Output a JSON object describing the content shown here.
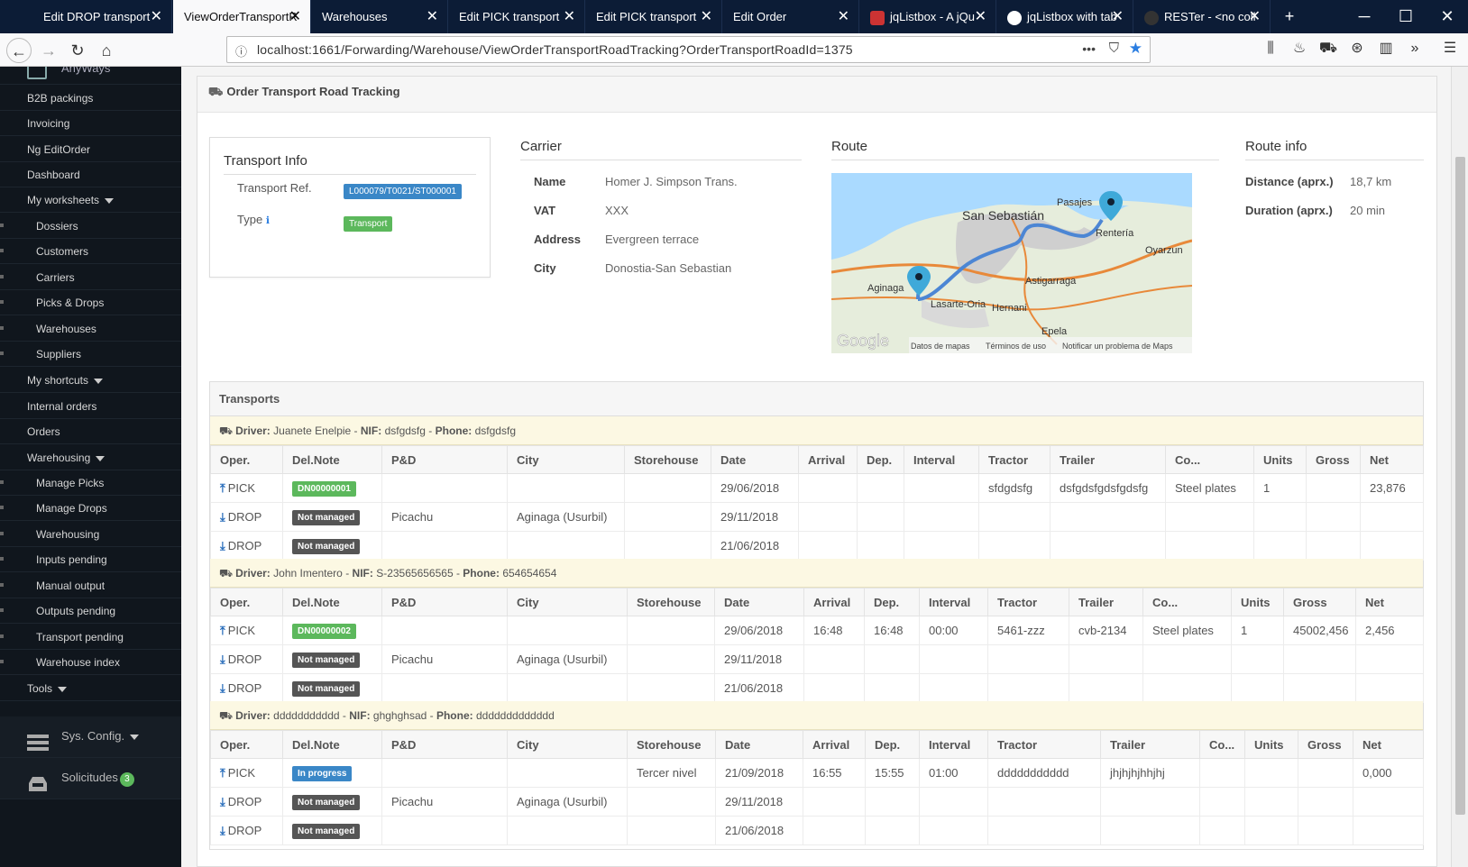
{
  "browser": {
    "tabs": [
      {
        "label": "Edit DROP transport"
      },
      {
        "label": "ViewOrderTransportR"
      },
      {
        "label": "Warehouses"
      },
      {
        "label": "Edit PICK transport"
      },
      {
        "label": "Edit PICK transport"
      },
      {
        "label": "Edit Order"
      },
      {
        "label": "jqListbox - A jQu"
      },
      {
        "label": "jqListbox with tab"
      },
      {
        "label": "RESTer - <no coll"
      }
    ],
    "url": "localhost:1661/Forwarding/Warehouse/ViewOrderTransportRoadTracking?OrderTransportRoadId=1375",
    "new_tab": "+",
    "min": "─",
    "max": "☐",
    "close": "✕",
    "more": "•••"
  },
  "sidebar": {
    "top_item": "AnyWays",
    "items": [
      {
        "label": "B2B packings",
        "type": "top"
      },
      {
        "label": "Invoicing",
        "type": "top"
      },
      {
        "label": "Ng EditOrder",
        "type": "top"
      },
      {
        "label": "Dashboard",
        "type": "top"
      },
      {
        "label": "My worksheets",
        "type": "top",
        "caret": true
      },
      {
        "label": "Dossiers",
        "type": "sub"
      },
      {
        "label": "Customers",
        "type": "sub"
      },
      {
        "label": "Carriers",
        "type": "sub"
      },
      {
        "label": "Picks & Drops",
        "type": "sub"
      },
      {
        "label": "Warehouses",
        "type": "sub"
      },
      {
        "label": "Suppliers",
        "type": "sub"
      },
      {
        "label": "My shortcuts",
        "type": "top",
        "caret": true
      },
      {
        "label": "Internal orders",
        "type": "top"
      },
      {
        "label": "Orders",
        "type": "top"
      },
      {
        "label": "Warehousing",
        "type": "top",
        "caret": true
      },
      {
        "label": "Manage Picks",
        "type": "sub"
      },
      {
        "label": "Manage Drops",
        "type": "sub"
      },
      {
        "label": "Warehousing",
        "type": "sub"
      },
      {
        "label": "Inputs pending",
        "type": "sub"
      },
      {
        "label": "Manual output",
        "type": "sub"
      },
      {
        "label": "Outputs pending",
        "type": "sub"
      },
      {
        "label": "Transport pending",
        "type": "sub"
      },
      {
        "label": "Warehouse index",
        "type": "sub"
      },
      {
        "label": "Tools",
        "type": "top",
        "caret": true
      }
    ],
    "sys_config": "Sys. Config.",
    "solicitudes": "Solicitudes",
    "solicitudes_count": "3"
  },
  "page": {
    "title": "Order Transport Road Tracking"
  },
  "transport_info": {
    "title": "Transport Info",
    "ref_label": "Transport Ref.",
    "ref_value": "L000079/T0021/ST000001",
    "type_label": "Type",
    "type_value": "Transport"
  },
  "carrier": {
    "title": "Carrier",
    "name_label": "Name",
    "name_value": "Homer J. Simpson Trans.",
    "vat_label": "VAT",
    "vat_value": "XXX",
    "address_label": "Address",
    "address_value": "Evergreen terrace",
    "city_label": "City",
    "city_value": "Donostia-San Sebastian"
  },
  "route": {
    "title": "Route",
    "places": [
      "San Sebastián",
      "Pasajes",
      "Rentería",
      "Oyarzun",
      "Aginaga",
      "Astigarraga",
      "Lasarte-Oria",
      "Hernani",
      "Epela"
    ],
    "google": "Google",
    "datos": "Datos de mapas",
    "terminos": "Términos de uso",
    "notificar": "Notificar un problema de Maps"
  },
  "route_info": {
    "title": "Route info",
    "distance_label": "Distance (aprx.)",
    "distance_value": "18,7 km",
    "duration_label": "Duration (aprx.)",
    "duration_value": "20 min"
  },
  "transports": {
    "title": "Transports",
    "groups": [
      {
        "driver_label": "Driver:",
        "driver": "Juanete Enelpie",
        "nif_label": "NIF:",
        "nif": "dsfgdsfg",
        "phone_label": "Phone:",
        "phone": "dsfgdsfg",
        "headers": [
          "Oper.",
          "Del.Note",
          "P&D",
          "City",
          "Storehouse",
          "Date",
          "Arrival",
          "Dep.",
          "Interval",
          "Tractor",
          "Trailer",
          "Co...",
          "Units",
          "Gross",
          "Net"
        ],
        "rows": [
          {
            "op": "PICK",
            "dir": "up",
            "note": "DN00000001",
            "note_color": "green",
            "pd": "",
            "city": "",
            "store": "",
            "date": "29/06/2018",
            "arr": "",
            "dep": "",
            "int": "",
            "tractor": "sfdgdsfg",
            "trailer": "dsfgdsfgdsfgdsfg",
            "co": "Steel plates",
            "units": "1",
            "gross": "",
            "net": "23,876"
          },
          {
            "op": "DROP",
            "dir": "down",
            "note": "Not managed",
            "note_color": "gray",
            "pd": "Picachu",
            "city": "Aginaga (Usurbil)",
            "store": "",
            "date": "29/11/2018",
            "arr": "",
            "dep": "",
            "int": "",
            "tractor": "",
            "trailer": "",
            "co": "",
            "units": "",
            "gross": "",
            "net": ""
          },
          {
            "op": "DROP",
            "dir": "down",
            "note": "Not managed",
            "note_color": "gray",
            "pd": "",
            "city": "",
            "store": "",
            "date": "21/06/2018",
            "arr": "",
            "dep": "",
            "int": "",
            "tractor": "",
            "trailer": "",
            "co": "",
            "units": "",
            "gross": "",
            "net": ""
          }
        ]
      },
      {
        "driver_label": "Driver:",
        "driver": "John Imentero",
        "nif_label": "NIF:",
        "nif": "S-23565656565",
        "phone_label": "Phone:",
        "phone": "654654654",
        "headers": [
          "Oper.",
          "Del.Note",
          "P&D",
          "City",
          "Storehouse",
          "Date",
          "Arrival",
          "Dep.",
          "Interval",
          "Tractor",
          "Trailer",
          "Co...",
          "Units",
          "Gross",
          "Net"
        ],
        "rows": [
          {
            "op": "PICK",
            "dir": "up",
            "note": "DN00000002",
            "note_color": "green",
            "pd": "",
            "city": "",
            "store": "",
            "date": "29/06/2018",
            "arr": "16:48",
            "dep": "16:48",
            "int": "00:00",
            "tractor": "5461-zzz",
            "trailer": "cvb-2134",
            "co": "Steel plates",
            "units": "1",
            "gross": "45002,456",
            "net": "2,456"
          },
          {
            "op": "DROP",
            "dir": "down",
            "note": "Not managed",
            "note_color": "gray",
            "pd": "Picachu",
            "city": "Aginaga (Usurbil)",
            "store": "",
            "date": "29/11/2018",
            "arr": "",
            "dep": "",
            "int": "",
            "tractor": "",
            "trailer": "",
            "co": "",
            "units": "",
            "gross": "",
            "net": ""
          },
          {
            "op": "DROP",
            "dir": "down",
            "note": "Not managed",
            "note_color": "gray",
            "pd": "",
            "city": "",
            "store": "",
            "date": "21/06/2018",
            "arr": "",
            "dep": "",
            "int": "",
            "tractor": "",
            "trailer": "",
            "co": "",
            "units": "",
            "gross": "",
            "net": ""
          }
        ]
      },
      {
        "driver_label": "Driver:",
        "driver": "ddddddddddd",
        "nif_label": "NIF:",
        "nif": "ghghghsad",
        "phone_label": "Phone:",
        "phone": "ddddddddddddd",
        "headers": [
          "Oper.",
          "Del.Note",
          "P&D",
          "City",
          "Storehouse",
          "Date",
          "Arrival",
          "Dep.",
          "Interval",
          "Tractor",
          "Trailer",
          "Co...",
          "Units",
          "Gross",
          "Net"
        ],
        "rows": [
          {
            "op": "PICK",
            "dir": "up",
            "note": "In progress",
            "note_color": "blue",
            "pd": "",
            "city": "",
            "store": "Tercer nivel",
            "date": "21/09/2018",
            "arr": "16:55",
            "dep": "15:55",
            "int": "01:00",
            "tractor": "ddddddddddd",
            "trailer": "jhjhjhjhhjhj",
            "co": "",
            "units": "",
            "gross": "",
            "net": "0,000"
          },
          {
            "op": "DROP",
            "dir": "down",
            "note": "Not managed",
            "note_color": "gray",
            "pd": "Picachu",
            "city": "Aginaga (Usurbil)",
            "store": "",
            "date": "29/11/2018",
            "arr": "",
            "dep": "",
            "int": "",
            "tractor": "",
            "trailer": "",
            "co": "",
            "units": "",
            "gross": "",
            "net": ""
          },
          {
            "op": "DROP",
            "dir": "down",
            "note": "Not managed",
            "note_color": "gray",
            "pd": "",
            "city": "",
            "store": "",
            "date": "21/06/2018",
            "arr": "",
            "dep": "",
            "int": "",
            "tractor": "",
            "trailer": "",
            "co": "",
            "units": "",
            "gross": "",
            "net": ""
          }
        ]
      }
    ]
  },
  "colors": {
    "sidebar": "#10161d",
    "tabbar": "#0c1c36",
    "accent": "#3a87c7",
    "green": "#5cb85c"
  }
}
